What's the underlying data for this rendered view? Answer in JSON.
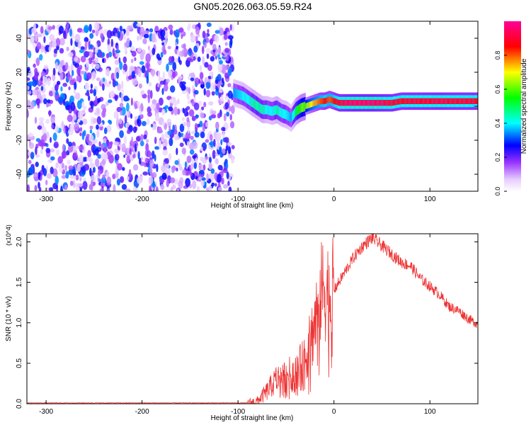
{
  "title": "GN05.2026.063.05.59.R24",
  "chart_data": [
    {
      "type": "heatmap",
      "title": "GN05.2026.063.05.59.R24",
      "xlabel": "Height of straight line (km)",
      "ylabel": "Frequency (Hz)",
      "xlim": [
        -320,
        150
      ],
      "ylim": [
        -50,
        50
      ],
      "xticks": [
        -300,
        -200,
        -100,
        0,
        100
      ],
      "yticks": [
        -40,
        -20,
        0,
        20,
        40
      ],
      "colorbar": {
        "label": "Normalized spectral amplitude",
        "range": [
          0,
          1
        ],
        "ticks": [
          "0.0",
          "0.2",
          "0.4",
          "0.6",
          "0.8"
        ],
        "colors": [
          "#ffffff",
          "#e6ccff",
          "#9933ff",
          "#0000ff",
          "#00ffff",
          "#00ff00",
          "#ffff00",
          "#ff0000",
          "#ff0099"
        ]
      },
      "regions": [
        {
          "name": "noise",
          "x_range": [
            -320,
            -105
          ],
          "freq_range": [
            -50,
            48
          ],
          "amplitude_range": [
            0.05,
            0.35
          ]
        },
        {
          "name": "signal",
          "x_range": [
            -105,
            150
          ],
          "amplitude_range": [
            0.3,
            1.0
          ]
        }
      ],
      "signal_track": {
        "x": [
          -105,
          -95,
          -90,
          -85,
          -80,
          -75,
          -70,
          -65,
          -60,
          -55,
          -50,
          -45,
          -40,
          -35,
          -30,
          -25,
          -20,
          -15,
          -10,
          -5,
          0,
          5,
          10,
          20,
          30,
          40,
          50,
          60,
          70,
          80,
          90,
          100,
          110,
          120,
          130,
          140,
          150
        ],
        "freq": [
          8,
          6,
          4,
          2,
          0,
          -2,
          -2,
          -3,
          -2,
          -4,
          -5,
          -7,
          -3,
          -1,
          0,
          1,
          2,
          3,
          3,
          4,
          3,
          2,
          2,
          2,
          2,
          2,
          2,
          2,
          3,
          3,
          3,
          3,
          3,
          3,
          3,
          3,
          3
        ],
        "amplitude": [
          0.35,
          0.4,
          0.4,
          0.45,
          0.45,
          0.45,
          0.4,
          0.4,
          0.45,
          0.4,
          0.4,
          0.35,
          0.5,
          0.6,
          0.6,
          0.7,
          0.75,
          0.8,
          0.85,
          0.8,
          0.85,
          0.9,
          0.92,
          0.95,
          0.95,
          0.95,
          0.93,
          0.9,
          0.88,
          0.9,
          0.9,
          0.9,
          0.92,
          0.9,
          0.9,
          0.9,
          0.88
        ]
      }
    },
    {
      "type": "line",
      "xlabel": "Height of straight line (km)",
      "ylabel": "SNR (10 * v/v)",
      "multiplier": "(x10^4)",
      "xlim": [
        -320,
        150
      ],
      "ylim": [
        0,
        2.1
      ],
      "xticks": [
        -300,
        -200,
        -100,
        0,
        100
      ],
      "yticks": [
        0.0,
        0.5,
        1.0,
        1.5,
        2.0
      ],
      "color": "#ee3333",
      "series": [
        {
          "name": "SNR",
          "x": [
            -320,
            -90,
            -80,
            -70,
            -60,
            -50,
            -40,
            -30,
            -25,
            -20,
            -15,
            -10,
            -5,
            0,
            10,
            20,
            30,
            40,
            50,
            60,
            70,
            80,
            90,
            100,
            110,
            120,
            130,
            140,
            150
          ],
          "values": [
            0.01,
            0.01,
            0.03,
            0.15,
            0.3,
            0.35,
            0.4,
            0.55,
            0.75,
            1.0,
            1.3,
            1.45,
            1.35,
            1.4,
            1.6,
            1.8,
            1.95,
            2.05,
            1.95,
            1.85,
            1.75,
            1.7,
            1.55,
            1.45,
            1.35,
            1.2,
            1.15,
            1.05,
            0.98
          ]
        }
      ]
    }
  ]
}
